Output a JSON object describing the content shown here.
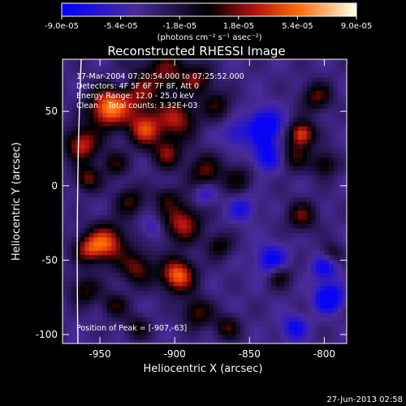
{
  "chart_data": {
    "type": "heatmap",
    "title": "Reconstructed RHESSI Image",
    "xlabel": "Heliocentric X (arcsec)",
    "ylabel": "Heliocentric Y (arcsec)",
    "xlim": [
      -975,
      -785
    ],
    "ylim": [
      -106,
      85
    ],
    "x_ticks": [
      -950,
      -900,
      -850,
      -800
    ],
    "x_tick_labels": [
      "-950",
      "-900",
      "-850",
      "-800"
    ],
    "y_ticks": [
      -100,
      -50,
      0,
      50
    ],
    "y_tick_labels": [
      "-100",
      "-50",
      "0",
      "50"
    ],
    "colorbar": {
      "min": -9e-05,
      "max": 9e-05,
      "tick_labels": [
        "-9.0e-05",
        "-5.4e-05",
        "-1.8e-05",
        "1.8e-05",
        "5.4e-05",
        "9.0e-05"
      ],
      "unit_label": "(photons cm⁻² s⁻¹ asec⁻²)"
    },
    "info_lines": [
      "17-Mar-2004 07:20:54.000 to 07:25:52.000",
      "Detectors: 4F 5F 6F 7F 8F, Att 0",
      "Energy Range: 12.0 - 25.0 keV",
      "Clean    Total counts: 3.32E+03"
    ],
    "peak_label": "Position of Peak = [-907,-63]",
    "peak_position": [
      -907,
      -63
    ],
    "source_blobs": [
      {
        "x": -945,
        "y": 52,
        "amp": 1.0,
        "s": 9
      },
      {
        "x": -925,
        "y": 62,
        "amp": 0.55,
        "s": 12
      },
      {
        "x": -905,
        "y": 78,
        "amp": 0.5,
        "s": 10
      },
      {
        "x": -920,
        "y": 38,
        "amp": 0.8,
        "s": 8
      },
      {
        "x": -898,
        "y": 45,
        "amp": 0.7,
        "s": 9
      },
      {
        "x": -905,
        "y": 22,
        "amp": 0.6,
        "s": 7
      },
      {
        "x": -880,
        "y": 10,
        "amp": 0.55,
        "s": 8
      },
      {
        "x": -885,
        "y": 72,
        "amp": 0.55,
        "s": 7
      },
      {
        "x": -872,
        "y": 55,
        "amp": 0.45,
        "s": 7
      },
      {
        "x": -962,
        "y": 28,
        "amp": 0.8,
        "s": 8
      },
      {
        "x": -958,
        "y": 5,
        "amp": 0.6,
        "s": 6
      },
      {
        "x": -940,
        "y": 15,
        "amp": 0.45,
        "s": 6
      },
      {
        "x": -930,
        "y": -10,
        "amp": 0.5,
        "s": 7
      },
      {
        "x": -945,
        "y": -38,
        "amp": 0.85,
        "s": 9
      },
      {
        "x": -958,
        "y": -42,
        "amp": 0.6,
        "s": 7
      },
      {
        "x": -925,
        "y": -55,
        "amp": 0.6,
        "s": 8
      },
      {
        "x": -898,
        "y": -60,
        "amp": 1.0,
        "s": 8
      },
      {
        "x": -895,
        "y": -25,
        "amp": 0.75,
        "s": 9
      },
      {
        "x": -905,
        "y": -8,
        "amp": 0.4,
        "s": 6
      },
      {
        "x": -960,
        "y": -70,
        "amp": 0.5,
        "s": 7
      },
      {
        "x": -940,
        "y": -80,
        "amp": 0.45,
        "s": 6
      },
      {
        "x": -925,
        "y": -95,
        "amp": 0.4,
        "s": 6
      },
      {
        "x": -885,
        "y": -85,
        "amp": 0.55,
        "s": 7
      },
      {
        "x": -870,
        "y": -40,
        "amp": 0.45,
        "s": 6
      },
      {
        "x": -865,
        "y": -95,
        "amp": 0.5,
        "s": 6
      },
      {
        "x": -858,
        "y": 5,
        "amp": 0.4,
        "s": 7
      },
      {
        "x": -830,
        "y": -60,
        "amp": 0.45,
        "s": 6
      },
      {
        "x": -820,
        "y": 20,
        "amp": 0.45,
        "s": 7
      },
      {
        "x": -815,
        "y": 35,
        "amp": 0.9,
        "s": 6
      },
      {
        "x": -805,
        "y": 60,
        "amp": 0.55,
        "s": 7
      },
      {
        "x": -800,
        "y": 15,
        "amp": 0.5,
        "s": 6
      },
      {
        "x": -815,
        "y": -20,
        "amp": 0.55,
        "s": 7
      },
      {
        "x": -795,
        "y": -45,
        "amp": 0.35,
        "s": 5
      },
      {
        "x": -840,
        "y": 40,
        "amp": -0.75,
        "s": 8
      },
      {
        "x": -838,
        "y": 20,
        "amp": -0.55,
        "s": 7
      },
      {
        "x": -835,
        "y": -50,
        "amp": -0.6,
        "s": 7
      },
      {
        "x": -797,
        "y": -75,
        "amp": -0.9,
        "s": 6
      },
      {
        "x": -800,
        "y": -55,
        "amp": -0.5,
        "s": 6
      },
      {
        "x": -820,
        "y": -95,
        "amp": -0.5,
        "s": 6
      },
      {
        "x": -860,
        "y": 35,
        "amp": -0.35,
        "s": 6
      },
      {
        "x": -855,
        "y": -15,
        "amp": -0.4,
        "s": 6
      },
      {
        "x": -880,
        "y": -5,
        "amp": -0.35,
        "s": 5
      },
      {
        "x": -915,
        "y": -28,
        "amp": -0.3,
        "s": 5
      },
      {
        "x": -935,
        "y": 72,
        "amp": -0.3,
        "s": 5
      }
    ]
  },
  "footer": {
    "timestamp": "27-Jun-2013 02:58"
  }
}
